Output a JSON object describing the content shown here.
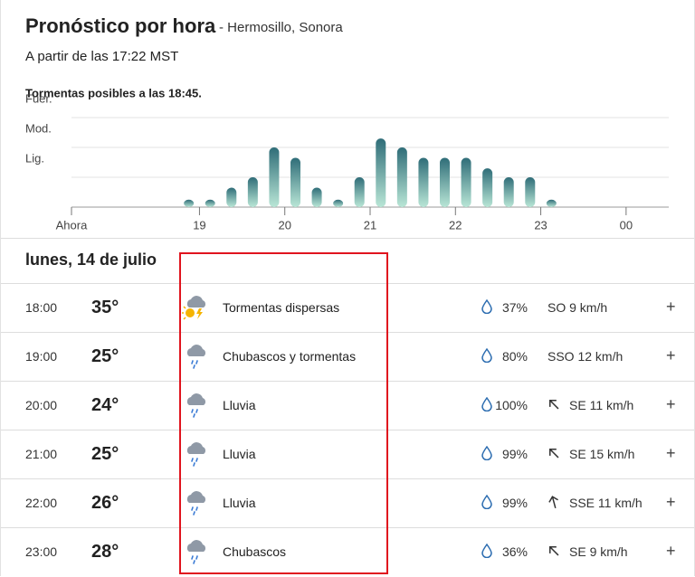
{
  "header": {
    "title": "Pronóstico por hora",
    "location": "- Hermosillo, Sonora",
    "updated": "A partir de las 17:22 MST"
  },
  "chart_data": {
    "type": "bar",
    "title": "Tormentas posibles a las 18:45.",
    "x": [
      18.875,
      19.125,
      19.375,
      19.625,
      19.875,
      20.125,
      20.375,
      20.625,
      20.875,
      21.125,
      21.375,
      21.625,
      21.875,
      22.125,
      22.375,
      22.625,
      22.875,
      23.125
    ],
    "values": [
      0.25,
      0.25,
      0.65,
      1.0,
      2.0,
      1.65,
      0.65,
      0.25,
      1.0,
      2.3,
      2.0,
      1.65,
      1.65,
      1.65,
      1.3,
      1.0,
      1.0,
      0.25
    ],
    "color": "#2f6d78",
    "xlim": [
      17.5,
      24.5
    ],
    "xticks": [
      {
        "value": 17.5,
        "label": "Ahora"
      },
      19,
      20,
      21,
      22,
      23,
      {
        "value": 24,
        "label": "00"
      }
    ],
    "ylim": [
      0,
      3
    ],
    "yticks": [
      {
        "value": 1,
        "label": "Lig."
      },
      {
        "value": 2,
        "label": "Mod."
      },
      {
        "value": 3,
        "label": "Fuer."
      }
    ],
    "grid": true
  },
  "day": "lunes, 14 de julio",
  "expand": "+",
  "rows": [
    {
      "time": "18:00",
      "temp": "35°",
      "condition": "Tormentas dispersas",
      "precip": "37%",
      "wind": "SO 9 km/h"
    },
    {
      "time": "19:00",
      "temp": "25°",
      "condition": "Chubascos y tormentas",
      "precip": "80%",
      "wind": "SSO 12 km/h"
    },
    {
      "time": "20:00",
      "temp": "24°",
      "condition": "Lluvia",
      "precip": "100%",
      "wind": "SE 11 km/h"
    },
    {
      "time": "21:00",
      "temp": "25°",
      "condition": "Lluvia",
      "precip": "99%",
      "wind": "SE 15 km/h"
    },
    {
      "time": "22:00",
      "temp": "26°",
      "condition": "Lluvia",
      "precip": "99%",
      "wind": "SSE 11 km/h"
    },
    {
      "time": "23:00",
      "temp": "28°",
      "condition": "Chubascos",
      "precip": "36%",
      "wind": "SE 9 km/h"
    }
  ]
}
